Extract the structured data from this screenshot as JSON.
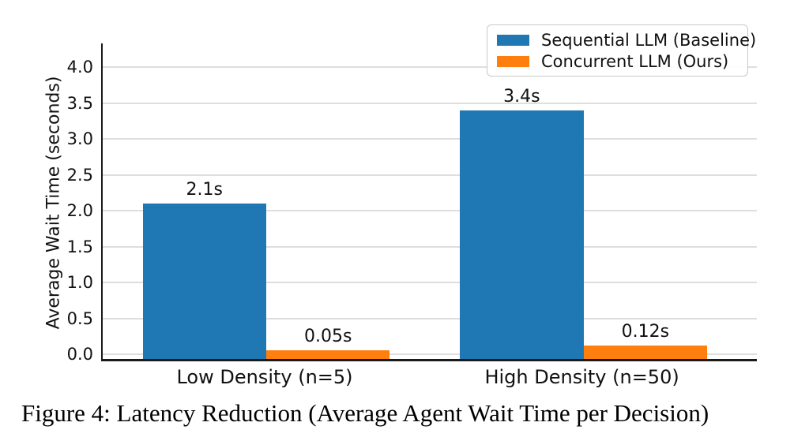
{
  "caption": "Figure 4: Latency Reduction (Average Agent Wait Time per Decision)",
  "chart_data": {
    "type": "bar",
    "title": "",
    "categories": [
      "Low Density (n=5)",
      "High Density (n=50)"
    ],
    "series": [
      {
        "name": "Sequential LLM (Baseline)",
        "color": "#1f77b4",
        "values": [
          2.1,
          3.4
        ],
        "value_labels": [
          "2.1s",
          "3.4s"
        ]
      },
      {
        "name": "Concurrent LLM (Ours)",
        "color": "#ff7f0e",
        "values": [
          0.05,
          0.12
        ],
        "value_labels": [
          "0.05s",
          "0.12s"
        ]
      }
    ],
    "xlabel": "",
    "ylabel": "Average Wait Time (seconds)",
    "yticks": [
      0.0,
      0.5,
      1.0,
      1.5,
      2.0,
      2.5,
      3.0,
      3.5,
      4.0
    ],
    "ytick_labels": [
      "0.0",
      "0.5",
      "1.0",
      "1.5",
      "2.0",
      "2.5",
      "3.0",
      "3.5",
      "4.0"
    ],
    "ylim": [
      0,
      4.35
    ],
    "grid": true,
    "legend_position": "upper right"
  },
  "colors": {
    "background": "#ffffff",
    "grid": "#dedede",
    "spine": "#1a1a1a",
    "text": "#111111",
    "blue": "#1f77b4",
    "orange": "#ff7f0e"
  }
}
